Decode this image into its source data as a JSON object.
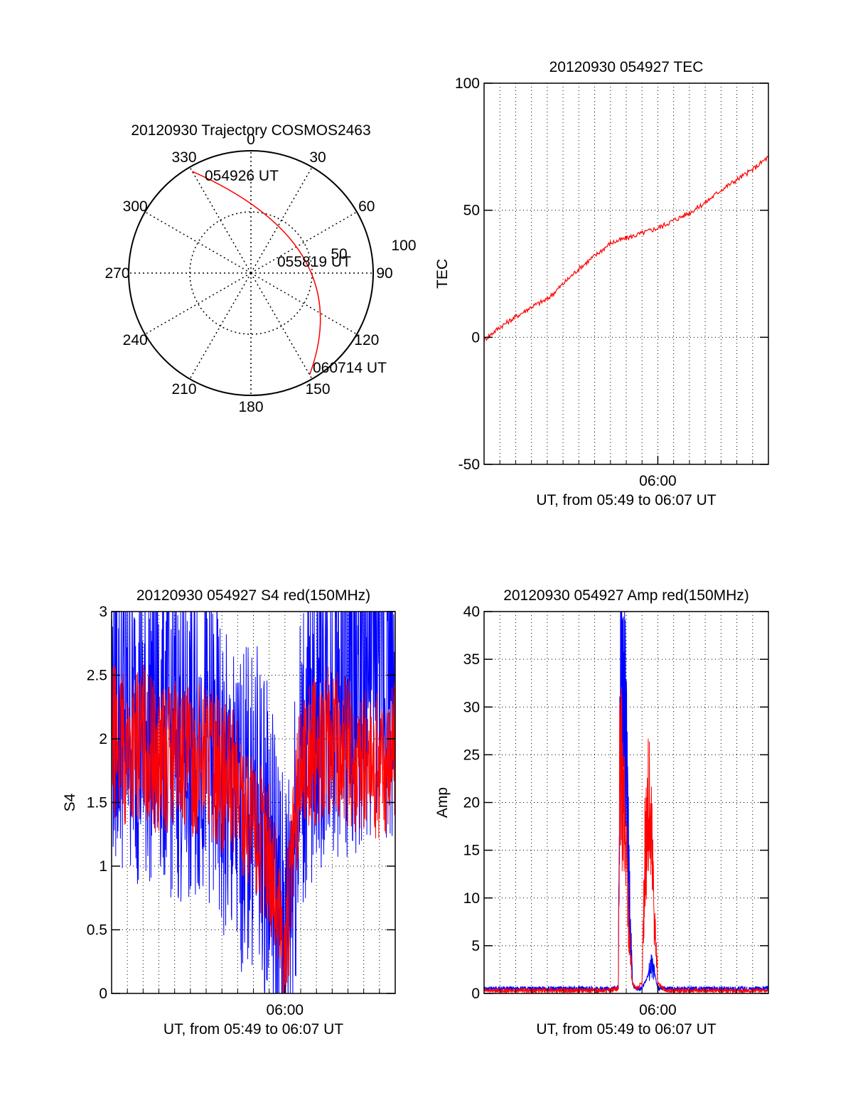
{
  "colors": {
    "red": "#ff0000",
    "blue": "#0000ff",
    "axis": "#000000",
    "grid": "#000000",
    "background": "#ffffff"
  },
  "chart_data": [
    {
      "type": "polar",
      "title": "20120930 Trajectory COSMOS2463",
      "angle_labels": [
        "0",
        "30",
        "60",
        "90",
        "120",
        "150",
        "180",
        "210",
        "240",
        "270",
        "300",
        "330"
      ],
      "radius_labels": [
        "50",
        "100"
      ],
      "grid": true,
      "series": [
        {
          "color": "red",
          "points": [
            {
              "azimuth_deg": 330,
              "elevation_scale": 100
            },
            {
              "azimuth_deg": 0,
              "elevation_scale": 55
            },
            {
              "azimuth_deg": 60,
              "elevation_scale": 40
            },
            {
              "azimuth_deg": 90,
              "elevation_scale": 45
            },
            {
              "azimuth_deg": 120,
              "elevation_scale": 70
            },
            {
              "azimuth_deg": 150,
              "elevation_scale": 100
            }
          ]
        }
      ],
      "annotations": [
        "054926 UT",
        "055819 UT",
        "060714 UT"
      ]
    },
    {
      "type": "line",
      "title": "20120930 054927 TEC",
      "xlabel": "UT, from 05:49 to 06:07 UT",
      "ylabel": "TEC",
      "xrange_min": [
        0,
        18
      ],
      "ylim": [
        -50,
        100
      ],
      "yticks": [
        "-50",
        "0",
        "50",
        "100"
      ],
      "xticks": [
        {
          "label": "06:00",
          "min": 11
        }
      ],
      "grid": true,
      "series": [
        {
          "color": "red",
          "x_min": [
            0,
            1,
            2,
            3,
            4,
            5,
            6,
            7,
            8,
            9,
            10,
            11,
            12,
            13,
            14,
            15,
            16,
            17,
            18
          ],
          "values": [
            -1,
            4,
            8,
            12,
            15,
            21,
            27,
            32,
            37,
            39,
            41,
            43,
            46,
            49,
            53,
            58,
            62,
            66,
            71
          ]
        }
      ]
    },
    {
      "type": "line",
      "title": "20120930 054927 S4 red(150MHz)",
      "xlabel": "UT, from 05:49 to 06:07 UT",
      "ylabel": "S4",
      "xrange_min": [
        0,
        18
      ],
      "ylim": [
        0,
        3
      ],
      "yticks": [
        "0",
        "0.5",
        "1",
        "1.5",
        "2",
        "2.5",
        "3"
      ],
      "xticks": [
        {
          "label": "06:00",
          "min": 11
        }
      ],
      "grid": true,
      "series": [
        {
          "color": "blue",
          "x_min": [
            0,
            1,
            2,
            3,
            4,
            5,
            6,
            7,
            8,
            9,
            10,
            11,
            12,
            13,
            14,
            15,
            16,
            17,
            18
          ],
          "values": [
            2.3,
            2.2,
            2.1,
            2.2,
            2.0,
            1.9,
            2.1,
            1.6,
            1.4,
            1.5,
            1.2,
            0.4,
            1.8,
            2.2,
            2.4,
            2.3,
            2.5,
            2.6,
            2.4
          ]
        },
        {
          "color": "red",
          "x_min": [
            0,
            1,
            2,
            3,
            4,
            5,
            6,
            7,
            8,
            9,
            10,
            11,
            12,
            13,
            14,
            15,
            16,
            17,
            18
          ],
          "values": [
            2.0,
            1.9,
            2.0,
            1.8,
            1.9,
            1.8,
            1.9,
            1.7,
            1.6,
            1.3,
            1.1,
            0.3,
            1.8,
            1.9,
            2.0,
            1.9,
            1.8,
            1.8,
            1.9
          ]
        }
      ]
    },
    {
      "type": "line",
      "title": "20120930 054927 Amp red(150MHz)",
      "xlabel": "UT, from 05:49 to 06:07 UT",
      "ylabel": "Amp",
      "xrange_min": [
        0,
        18
      ],
      "ylim": [
        0,
        40
      ],
      "yticks": [
        "0",
        "5",
        "10",
        "15",
        "20",
        "25",
        "30",
        "35",
        "40"
      ],
      "xticks": [
        {
          "label": "06:00",
          "min": 11
        }
      ],
      "grid": true,
      "series": [
        {
          "color": "blue",
          "x_min": [
            0,
            2,
            4,
            6,
            8,
            8.5,
            8.6,
            8.8,
            9.0,
            9.2,
            9.4,
            9.6,
            10.0,
            10.4,
            10.6,
            10.8,
            11.0,
            11.5,
            12,
            14,
            16,
            18
          ],
          "values": [
            0.5,
            0.5,
            0.5,
            0.5,
            0.5,
            0.6,
            30,
            34,
            25,
            10,
            1,
            0.5,
            0.5,
            2,
            3,
            2,
            0.5,
            0.5,
            0.5,
            0.5,
            0.5,
            0.5
          ]
        },
        {
          "color": "red",
          "x_min": [
            0,
            2,
            4,
            6,
            8,
            8.5,
            8.6,
            8.8,
            9.0,
            9.2,
            9.4,
            9.6,
            10.0,
            10.2,
            10.4,
            10.6,
            10.8,
            11.0,
            11.5,
            12,
            14,
            16,
            18
          ],
          "values": [
            0.3,
            0.3,
            0.3,
            0.3,
            0.3,
            0.5,
            25,
            20,
            15,
            6,
            1,
            0.5,
            1,
            16,
            20,
            17,
            8,
            1,
            0.3,
            0.3,
            0.3,
            0.3,
            0.3
          ]
        }
      ]
    }
  ]
}
